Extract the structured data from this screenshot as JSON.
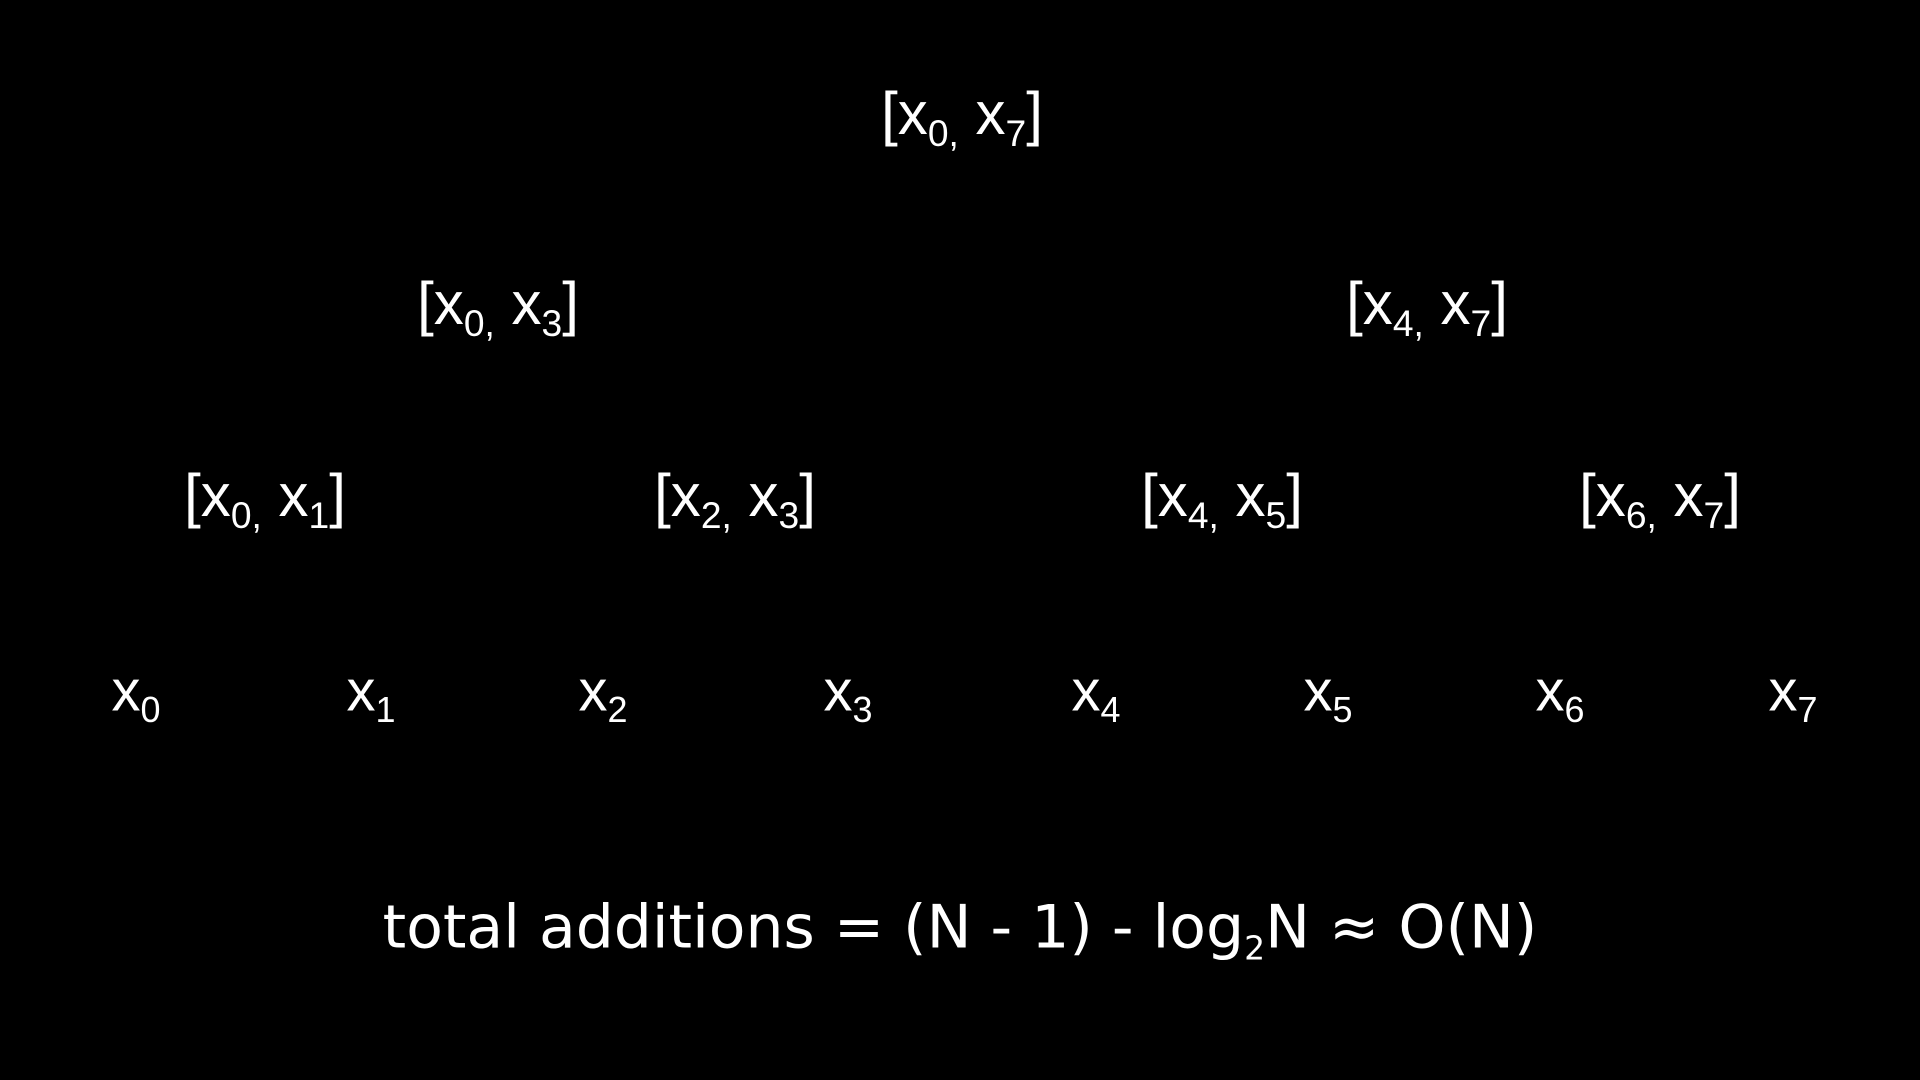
{
  "background": "#000000",
  "foreground": "#ffffff",
  "tree": {
    "root": {
      "open": "[x",
      "a": "0,",
      "mid": " x",
      "b": "7",
      "close": "]"
    },
    "level1": [
      {
        "open": "[x",
        "a": "0,",
        "mid": " x",
        "b": "3",
        "close": "]"
      },
      {
        "open": "[x",
        "a": "4,",
        "mid": " x",
        "b": "7",
        "close": "]"
      }
    ],
    "level2": [
      {
        "open": "[x",
        "a": "0,",
        "mid": " x",
        "b": "1",
        "close": "]"
      },
      {
        "open": "[x",
        "a": "2,",
        "mid": " x",
        "b": "3",
        "close": "]"
      },
      {
        "open": "[x",
        "a": "4,",
        "mid": " x",
        "b": "5",
        "close": "]"
      },
      {
        "open": "[x",
        "a": "6,",
        "mid": " x",
        "b": "7",
        "close": "]"
      }
    ],
    "leaves": [
      {
        "base": "x",
        "sub": "0"
      },
      {
        "base": "x",
        "sub": "1"
      },
      {
        "base": "x",
        "sub": "2"
      },
      {
        "base": "x",
        "sub": "3"
      },
      {
        "base": "x",
        "sub": "4"
      },
      {
        "base": "x",
        "sub": "5"
      },
      {
        "base": "x",
        "sub": "6"
      },
      {
        "base": "x",
        "sub": "7"
      }
    ]
  },
  "formula": {
    "before": "total additions = (N - 1) - log",
    "sub": "2",
    "after": "N ≈ O(N)"
  }
}
